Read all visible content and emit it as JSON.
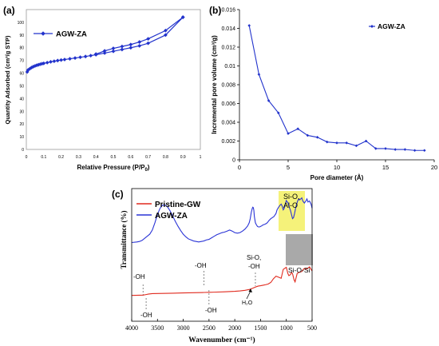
{
  "chart_data": [
    {
      "panel": "(a)",
      "type": "line",
      "xlabel": "Relative Pressure (P/P",
      "xlabel_sub": "0",
      "xlabel_end": ")",
      "ylabel": "Quantity Adsorbed (cm³/g STP)",
      "xlim": [
        0,
        1.0
      ],
      "ylim": [
        0,
        110
      ],
      "xticks": [
        "0",
        "0.1",
        "0.2",
        "0.3",
        "0.4",
        "0.5",
        "0.6",
        "0.7",
        "0.8",
        "0.9",
        "1"
      ],
      "yticks": [
        "0",
        "10",
        "20",
        "30",
        "40",
        "50",
        "60",
        "70",
        "80",
        "90",
        "100"
      ],
      "legend": "AGW-ZA",
      "color": "#2233cc",
      "series": [
        {
          "branch": "adsorption",
          "x": [
            0.005,
            0.01,
            0.02,
            0.03,
            0.04,
            0.05,
            0.06,
            0.07,
            0.08,
            0.09,
            0.1,
            0.12,
            0.14,
            0.16,
            0.18,
            0.2,
            0.22,
            0.25,
            0.28,
            0.31,
            0.34,
            0.37,
            0.4,
            0.45,
            0.5,
            0.55,
            0.6,
            0.65,
            0.7,
            0.8,
            0.9
          ],
          "y": [
            61,
            62.5,
            63.5,
            64.4,
            65.1,
            65.7,
            66.2,
            66.6,
            67.0,
            67.4,
            67.7,
            68.3,
            68.9,
            69.4,
            69.9,
            70.3,
            70.7,
            71.3,
            71.9,
            72.5,
            73.1,
            73.8,
            74.5,
            75.8,
            77.2,
            78.6,
            80.0,
            81.5,
            83.5,
            90.0,
            104
          ]
        },
        {
          "branch": "desorption",
          "x": [
            0.9,
            0.8,
            0.7,
            0.65,
            0.6,
            0.55,
            0.5,
            0.45,
            0.4
          ],
          "y": [
            104,
            93.5,
            87.0,
            84.5,
            82.5,
            81.0,
            79.5,
            77.5,
            75.0
          ]
        }
      ]
    },
    {
      "panel": "(b)",
      "type": "line",
      "xlabel": "Pore diameter (Å)",
      "ylabel": "Incremental pore volume (cm³/g)",
      "xlim": [
        0,
        20
      ],
      "ylim": [
        0,
        0.016
      ],
      "xticks": [
        "0",
        "5",
        "10",
        "15",
        "20"
      ],
      "yticks": [
        "0",
        "0.002",
        "0.004",
        "0.006",
        "0.008",
        "0.01",
        "0.012",
        "0.014",
        "0.016"
      ],
      "legend": "AGW-ZA",
      "color": "#2233cc",
      "x": [
        1,
        2,
        3,
        4,
        5,
        6,
        7,
        8,
        9,
        10,
        11,
        12,
        13,
        14,
        15,
        16,
        17,
        18,
        19
      ],
      "y": [
        0.0143,
        0.0091,
        0.0063,
        0.005,
        0.0028,
        0.0033,
        0.0026,
        0.0024,
        0.0019,
        0.0018,
        0.0018,
        0.0015,
        0.002,
        0.0012,
        0.0012,
        0.0011,
        0.0011,
        0.001,
        0.001
      ]
    },
    {
      "panel": "(c)",
      "type": "line",
      "xlabel": "Wavenumber (cm⁻¹)",
      "ylabel": "Transmittance (%)",
      "xlim": [
        4000,
        500
      ],
      "xticks": [
        "4000",
        "3500",
        "3000",
        "2500",
        "2000",
        "1500",
        "1000",
        "500"
      ],
      "series": [
        {
          "name": "Pristine-GW",
          "color": "#e02a1e",
          "x": [
            4000,
            3850,
            3780,
            3720,
            3680,
            3600,
            3400,
            3200,
            3000,
            2800,
            2600,
            2500,
            2400,
            2200,
            2000,
            1900,
            1800,
            1700,
            1650,
            1600,
            1550,
            1500,
            1450,
            1400,
            1350,
            1300,
            1250,
            1200,
            1150,
            1100,
            1060,
            1030,
            1000,
            970,
            950,
            920,
            900,
            880,
            850,
            830,
            810,
            790,
            760,
            730,
            700,
            680,
            650,
            600,
            550,
            500
          ],
          "y": [
            -0.5,
            -0.35,
            -0.25,
            0.3,
            0.7,
            1.2,
            1.4,
            1.6,
            1.9,
            2.1,
            2.3,
            2.45,
            2.6,
            2.9,
            3.4,
            3.8,
            4.4,
            5.4,
            6.4,
            7.5,
            8.4,
            8.8,
            9.3,
            9.8,
            10.5,
            12.0,
            15.5,
            18.0,
            17.0,
            16.0,
            24.5,
            25.5,
            26.5,
            20.5,
            18.5,
            19.5,
            21.5,
            20.5,
            14.5,
            12.5,
            16.5,
            20.5,
            21.5,
            22.0,
            22.5,
            24.0,
            25.5,
            25.0,
            27.0,
            23.0
          ]
        },
        {
          "name": "AGW-ZA",
          "color": "#2a34d6",
          "x": [
            4000,
            3900,
            3850,
            3800,
            3750,
            3700,
            3650,
            3600,
            3550,
            3500,
            3450,
            3400,
            3350,
            3300,
            3250,
            3200,
            3150,
            3100,
            3050,
            3000,
            2950,
            2900,
            2850,
            2800,
            2750,
            2700,
            2650,
            2600,
            2550,
            2500,
            2450,
            2400,
            2350,
            2300,
            2250,
            2200,
            2150,
            2100,
            2050,
            2000,
            1950,
            1900,
            1850,
            1800,
            1750,
            1720,
            1700,
            1680,
            1660,
            1650,
            1640,
            1630,
            1620,
            1600,
            1580,
            1560,
            1540,
            1520,
            1500,
            1480,
            1450,
            1420,
            1400,
            1370,
            1340,
            1300,
            1270,
            1240,
            1200,
            1180,
            1150,
            1120,
            1100,
            1080,
            1060,
            1040,
            1020,
            1000,
            990,
            970,
            950,
            920,
            900,
            880,
            860,
            840,
            820,
            800,
            780,
            760,
            740,
            720,
            700,
            680,
            650,
            620,
            600,
            580,
            550,
            520,
            500
          ],
          "y": [
            55.0,
            55.5,
            56.0,
            57.0,
            59.0,
            61.0,
            63.0,
            67.0,
            74.0,
            82.0,
            88.0,
            91.0,
            91.0,
            89.0,
            85.0,
            80.0,
            75.0,
            70.5,
            66.5,
            63.0,
            60.5,
            58.5,
            57.5,
            56.5,
            56.0,
            55.5,
            56.0,
            56.5,
            57.5,
            58.0,
            59.5,
            61.0,
            62.5,
            63.5,
            64.5,
            65.0,
            66.0,
            67.0,
            66.0,
            64.5,
            64.0,
            64.5,
            66.0,
            68.0,
            71.0,
            74.0,
            78.0,
            84.0,
            88.0,
            89.0,
            88.5,
            86.0,
            80.0,
            74.0,
            72.0,
            70.5,
            70.0,
            70.0,
            70.5,
            71.0,
            72.0,
            72.5,
            73.0,
            74.0,
            76.0,
            78.0,
            79.0,
            80.0,
            83.0,
            86.5,
            89.0,
            91.0,
            92.0,
            90.0,
            86.5,
            88.0,
            92.0,
            95.5,
            94.5,
            93.5,
            90.0,
            86.0,
            82.0,
            78.0,
            79.0,
            83.0,
            88.0,
            92.0,
            95.0,
            97.0,
            96.0,
            97.0,
            98.0,
            95.0,
            93.0,
            95.0,
            97.0,
            94.0,
            95.0,
            92.0,
            88.0
          ]
        }
      ],
      "annotations": {
        "si_o_al_o_line1": "Si-O,",
        "si_o_al_o_line2": "Al-O",
        "si_o_si": "Si-O-Si",
        "oh_blue_left": "-OH",
        "oh_blue_mid": "-OH",
        "si_o_oh_line1": "Si-O,",
        "si_o_oh_line2": "-OH",
        "oh_red_left": "-OH",
        "oh_red_mid": "-OH",
        "h2o": "H₂O"
      },
      "highlight_colors": {
        "yellow": "#f5f27a",
        "gray": "#a9a9a9"
      }
    }
  ],
  "panel_labels": [
    "(a)",
    "(b)",
    "(c)"
  ]
}
